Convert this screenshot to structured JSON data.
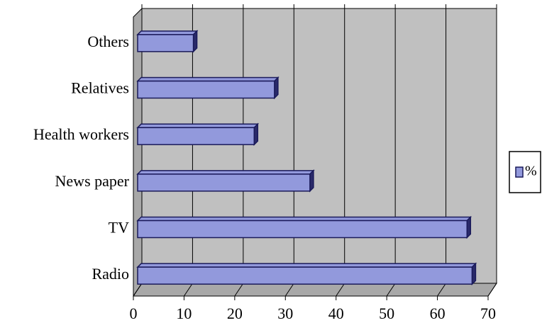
{
  "chart_data": {
    "type": "bar",
    "orientation": "horizontal",
    "categories": [
      "Others",
      "Relatives",
      "Health workers",
      "News paper",
      "TV",
      "Radio"
    ],
    "series": [
      {
        "name": "%",
        "color": "#9299dc",
        "values": [
          11,
          27,
          23,
          34,
          65,
          66
        ]
      }
    ],
    "xlim": [
      0,
      70
    ],
    "xticks": [
      0,
      10,
      20,
      30,
      40,
      50,
      60,
      70
    ],
    "grid": true,
    "legend": "right"
  }
}
